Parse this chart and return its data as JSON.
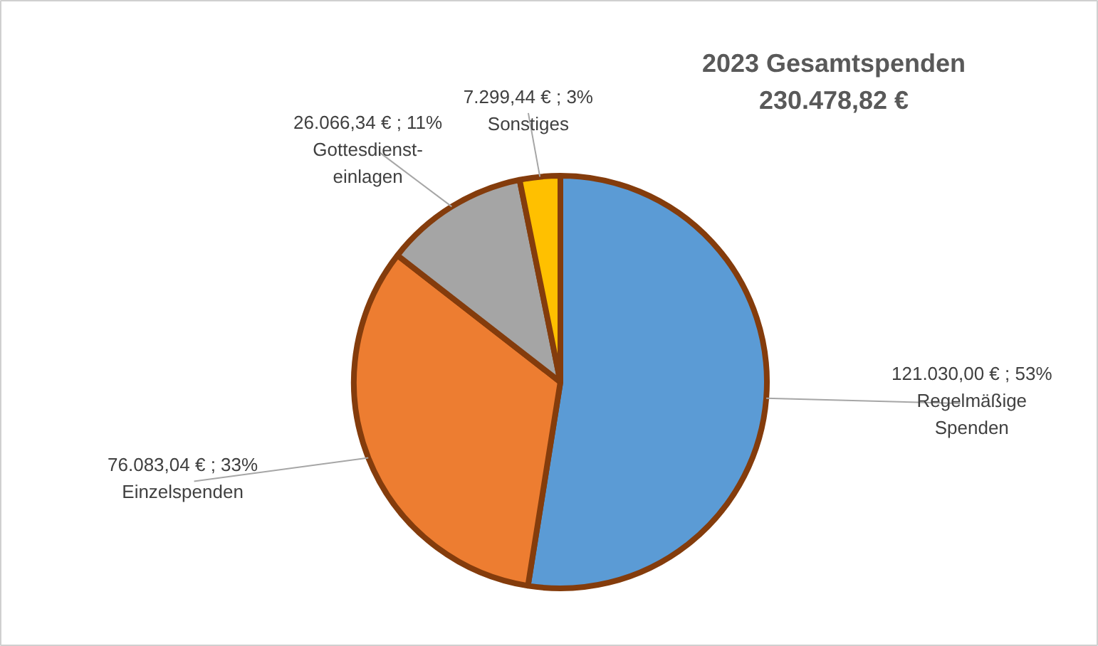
{
  "chart_data": {
    "type": "pie",
    "title": "2023 Gesamtspenden",
    "subtitle": "230.478,82 €",
    "categories": [
      "Regelmäßige Spenden",
      "Einzelspenden",
      "Gottesdienst-einlagen",
      "Sonstiges"
    ],
    "values": [
      121030.0,
      76083.04,
      26066.34,
      7299.44
    ],
    "value_labels": [
      "121.030,00 € ; 53%",
      "76.083,04 € ; 33%",
      "26.066,34 € ; 11%",
      "7.299,44 € ; 3%"
    ],
    "colors": [
      "#5b9bd5",
      "#ed7d31",
      "#a5a5a5",
      "#ffc000"
    ]
  }
}
